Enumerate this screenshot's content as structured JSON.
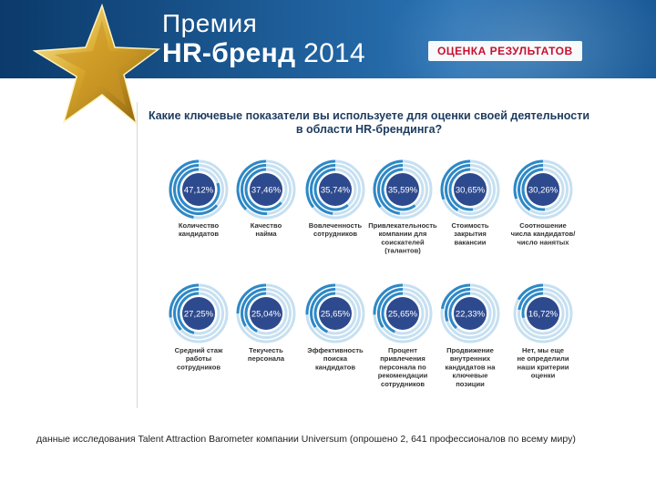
{
  "header": {
    "brand_line1": "Премия",
    "brand_hr": "HR-бренд",
    "brand_year": "2014",
    "section_title": "ОЦЕНКА РЕЗУЛЬТАТОВ"
  },
  "chart_data": {
    "type": "bar",
    "title": "Какие ключевые показатели вы используете для оценки своей деятельности в области HR-брендинга?",
    "unit": "%",
    "categories": [
      "Количество кандидатов",
      "Качество найма",
      "Вовлеченность сотрудников",
      "Привлекательность компании для соискателей (талантов)",
      "Стоимость закрытия вакансии",
      "Соотношение числа кандидатов/ число нанятых",
      "Средний стаж работы сотрудников",
      "Текучесть персонала",
      "Эффективность поиска кандидатов",
      "Процент привлечения персонала по рекомендации сотрудников",
      "Продвижение внутренних кандидатов на ключевые позиции",
      "Нет, мы еще не определили наши критерии оценки"
    ],
    "values": [
      47.12,
      37.46,
      35.74,
      35.59,
      30.65,
      30.26,
      27.25,
      25.04,
      25.65,
      25.65,
      22.33,
      16.72
    ],
    "value_labels": [
      "47,12%",
      "37,46%",
      "35,74%",
      "35,59%",
      "30,65%",
      "30,26%",
      "27,25%",
      "25,04%",
      "25,65%",
      "25,65%",
      "22,33%",
      "16,72%"
    ],
    "label_lines": [
      [
        "Количество",
        "кандидатов"
      ],
      [
        "Качество",
        "найма"
      ],
      [
        "Вовлеченность",
        "сотрудников"
      ],
      [
        "Привлекательность",
        "компании для",
        "соискателей",
        "(талантов)"
      ],
      [
        "Стоимость",
        "закрытия",
        "вакансии"
      ],
      [
        "Соотношение",
        "числа кандидатов/",
        "число нанятых"
      ],
      [
        "Средний стаж",
        "работы",
        "сотрудников"
      ],
      [
        "Текучесть",
        "персонала"
      ],
      [
        "Эффективность",
        "поиска",
        "кандидатов"
      ],
      [
        "Процент",
        "привлечения",
        "персонала по",
        "рекомендации",
        "сотрудников"
      ],
      [
        "Продвижение",
        "внутренних",
        "кандидатов на",
        "ключевые",
        "позиции"
      ],
      [
        "Нет, мы еще",
        "не определили",
        "наши критерии",
        "оценки"
      ]
    ],
    "colors": {
      "disc": "#2e4a8e",
      "ring_active": "#2e88c6",
      "ring_track": "#c6e0f1",
      "label": "#333333"
    }
  },
  "footnote": "данные исследования Talent Attraction Barometer компании Universum (опрошено 2, 641 профессионалов по всему миру)"
}
